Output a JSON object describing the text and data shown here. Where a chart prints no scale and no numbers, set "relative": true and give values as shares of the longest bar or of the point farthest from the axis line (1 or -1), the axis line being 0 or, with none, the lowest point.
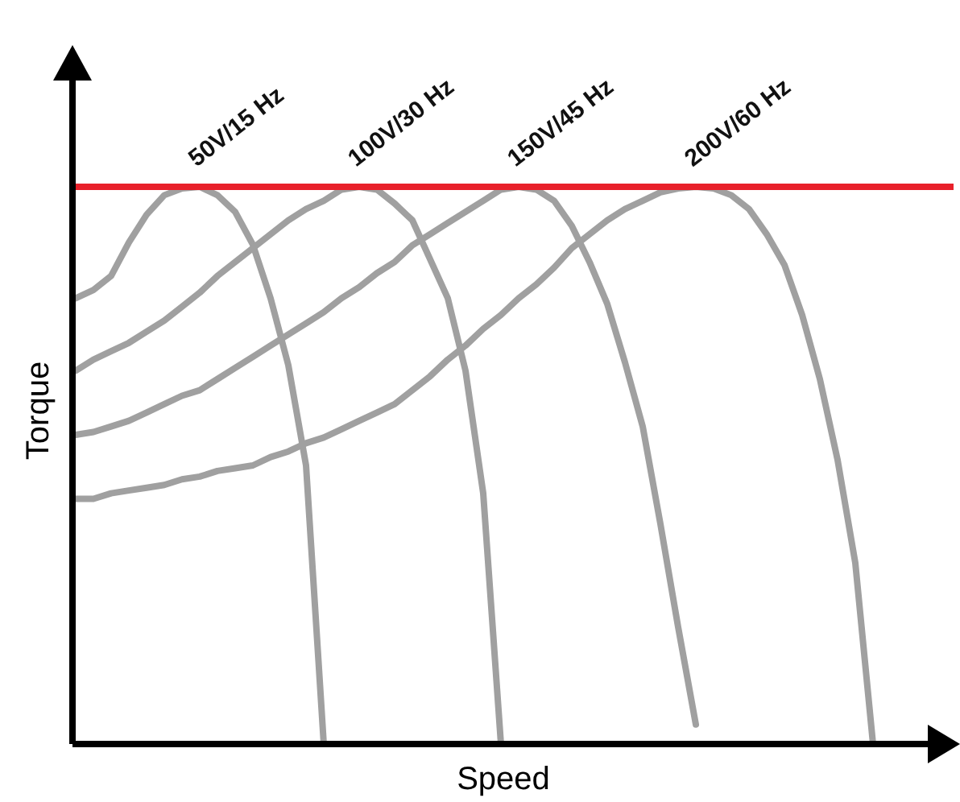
{
  "chart_data": {
    "type": "line",
    "relative": true,
    "xlabel": "Speed",
    "ylabel": "Torque",
    "line_style": "solid",
    "categories": [
      null,
      null,
      null,
      null,
      null,
      null,
      null,
      null,
      null,
      null,
      null,
      null,
      null,
      null,
      null,
      null,
      null,
      null,
      null,
      null,
      null,
      null,
      null,
      null,
      null,
      null,
      null,
      null,
      null,
      null,
      null,
      null,
      null,
      null,
      null,
      null,
      null,
      null,
      null,
      null,
      null,
      null,
      null,
      null,
      null,
      null,
      null,
      null,
      null
    ],
    "series": [
      {
        "name": "50V/15 Hz",
        "color": "#a0a0a0",
        "values": [
          0.8,
          0.815,
          0.84,
          0.9,
          0.95,
          0.985,
          0.997,
          1,
          0.985,
          0.955,
          0.896,
          0.8,
          0.68,
          0.5,
          0,
          null,
          null,
          null,
          null,
          null,
          null,
          null,
          null,
          null,
          null,
          null,
          null,
          null,
          null,
          null,
          null,
          null,
          null,
          null,
          null,
          null,
          null,
          null,
          null,
          null,
          null,
          null,
          null,
          null,
          null,
          null,
          null,
          null,
          null
        ]
      },
      {
        "name": "100V/30 Hz",
        "color": "#a0a0a0",
        "values": [
          0.67,
          0.69,
          0.705,
          0.72,
          0.74,
          0.76,
          0.785,
          0.81,
          0.84,
          0.865,
          0.89,
          0.915,
          0.94,
          0.96,
          0.975,
          0.995,
          1,
          0.995,
          0.97,
          0.94,
          0.87,
          0.8,
          0.67,
          0.45,
          0,
          null,
          null,
          null,
          null,
          null,
          null,
          null,
          null,
          null,
          null,
          null,
          null,
          null,
          null,
          null,
          null,
          null,
          null,
          null,
          null,
          null,
          null,
          null,
          null
        ]
      },
      {
        "name": "150V/45 Hz",
        "color": "#a0a0a0",
        "values": [
          0.555,
          0.56,
          0.57,
          0.58,
          0.595,
          0.61,
          0.625,
          0.635,
          0.655,
          0.675,
          0.695,
          0.715,
          0.735,
          0.755,
          0.775,
          0.8,
          0.82,
          0.845,
          0.865,
          0.895,
          0.915,
          0.935,
          0.955,
          0.975,
          0.995,
          1,
          0.995,
          0.975,
          0.93,
          0.865,
          0.79,
          0.685,
          0.57,
          0.395,
          0.21,
          0.035,
          null,
          null,
          null,
          null,
          null,
          null,
          null,
          null,
          null,
          null,
          null,
          null,
          null
        ]
      },
      {
        "name": "200V/60 Hz",
        "color": "#a0a0a0",
        "values": [
          0.44,
          0.44,
          0.45,
          0.455,
          0.46,
          0.465,
          0.475,
          0.48,
          0.49,
          0.495,
          0.5,
          0.515,
          0.525,
          0.54,
          0.55,
          0.565,
          0.58,
          0.595,
          0.61,
          0.635,
          0.66,
          0.69,
          0.715,
          0.745,
          0.77,
          0.8,
          0.825,
          0.855,
          0.89,
          0.915,
          0.94,
          0.96,
          0.975,
          0.99,
          0.997,
          1,
          0.997,
          0.985,
          0.96,
          0.915,
          0.86,
          0.77,
          0.655,
          0.51,
          0.325,
          0,
          null,
          null,
          null
        ]
      }
    ],
    "ref_lines": [
      {
        "axis": "y",
        "value": 1,
        "color": "#e8202a",
        "line_style": "solid"
      }
    ]
  }
}
